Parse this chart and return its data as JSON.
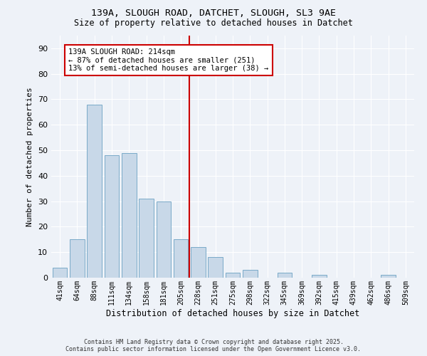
{
  "title1": "139A, SLOUGH ROAD, DATCHET, SLOUGH, SL3 9AE",
  "title2": "Size of property relative to detached houses in Datchet",
  "xlabel": "Distribution of detached houses by size in Datchet",
  "ylabel": "Number of detached properties",
  "bar_color": "#c8d8e8",
  "bar_edge_color": "#7aaac8",
  "background_color": "#eef2f8",
  "grid_color": "#ffffff",
  "categories": [
    "41sqm",
    "64sqm",
    "88sqm",
    "111sqm",
    "134sqm",
    "158sqm",
    "181sqm",
    "205sqm",
    "228sqm",
    "251sqm",
    "275sqm",
    "298sqm",
    "322sqm",
    "345sqm",
    "369sqm",
    "392sqm",
    "415sqm",
    "439sqm",
    "462sqm",
    "486sqm",
    "509sqm"
  ],
  "values": [
    4,
    15,
    68,
    48,
    49,
    31,
    30,
    15,
    12,
    8,
    2,
    3,
    0,
    2,
    0,
    1,
    0,
    0,
    0,
    1,
    0
  ],
  "vline_x": 7.5,
  "vline_color": "#cc0000",
  "annotation_title": "139A SLOUGH ROAD: 214sqm",
  "annotation_line1": "← 87% of detached houses are smaller (251)",
  "annotation_line2": "13% of semi-detached houses are larger (38) →",
  "annotation_box_color": "#cc0000",
  "ylim": [
    0,
    95
  ],
  "yticks": [
    0,
    10,
    20,
    30,
    40,
    50,
    60,
    70,
    80,
    90
  ],
  "footer_line1": "Contains HM Land Registry data © Crown copyright and database right 2025.",
  "footer_line2": "Contains public sector information licensed under the Open Government Licence v3.0."
}
